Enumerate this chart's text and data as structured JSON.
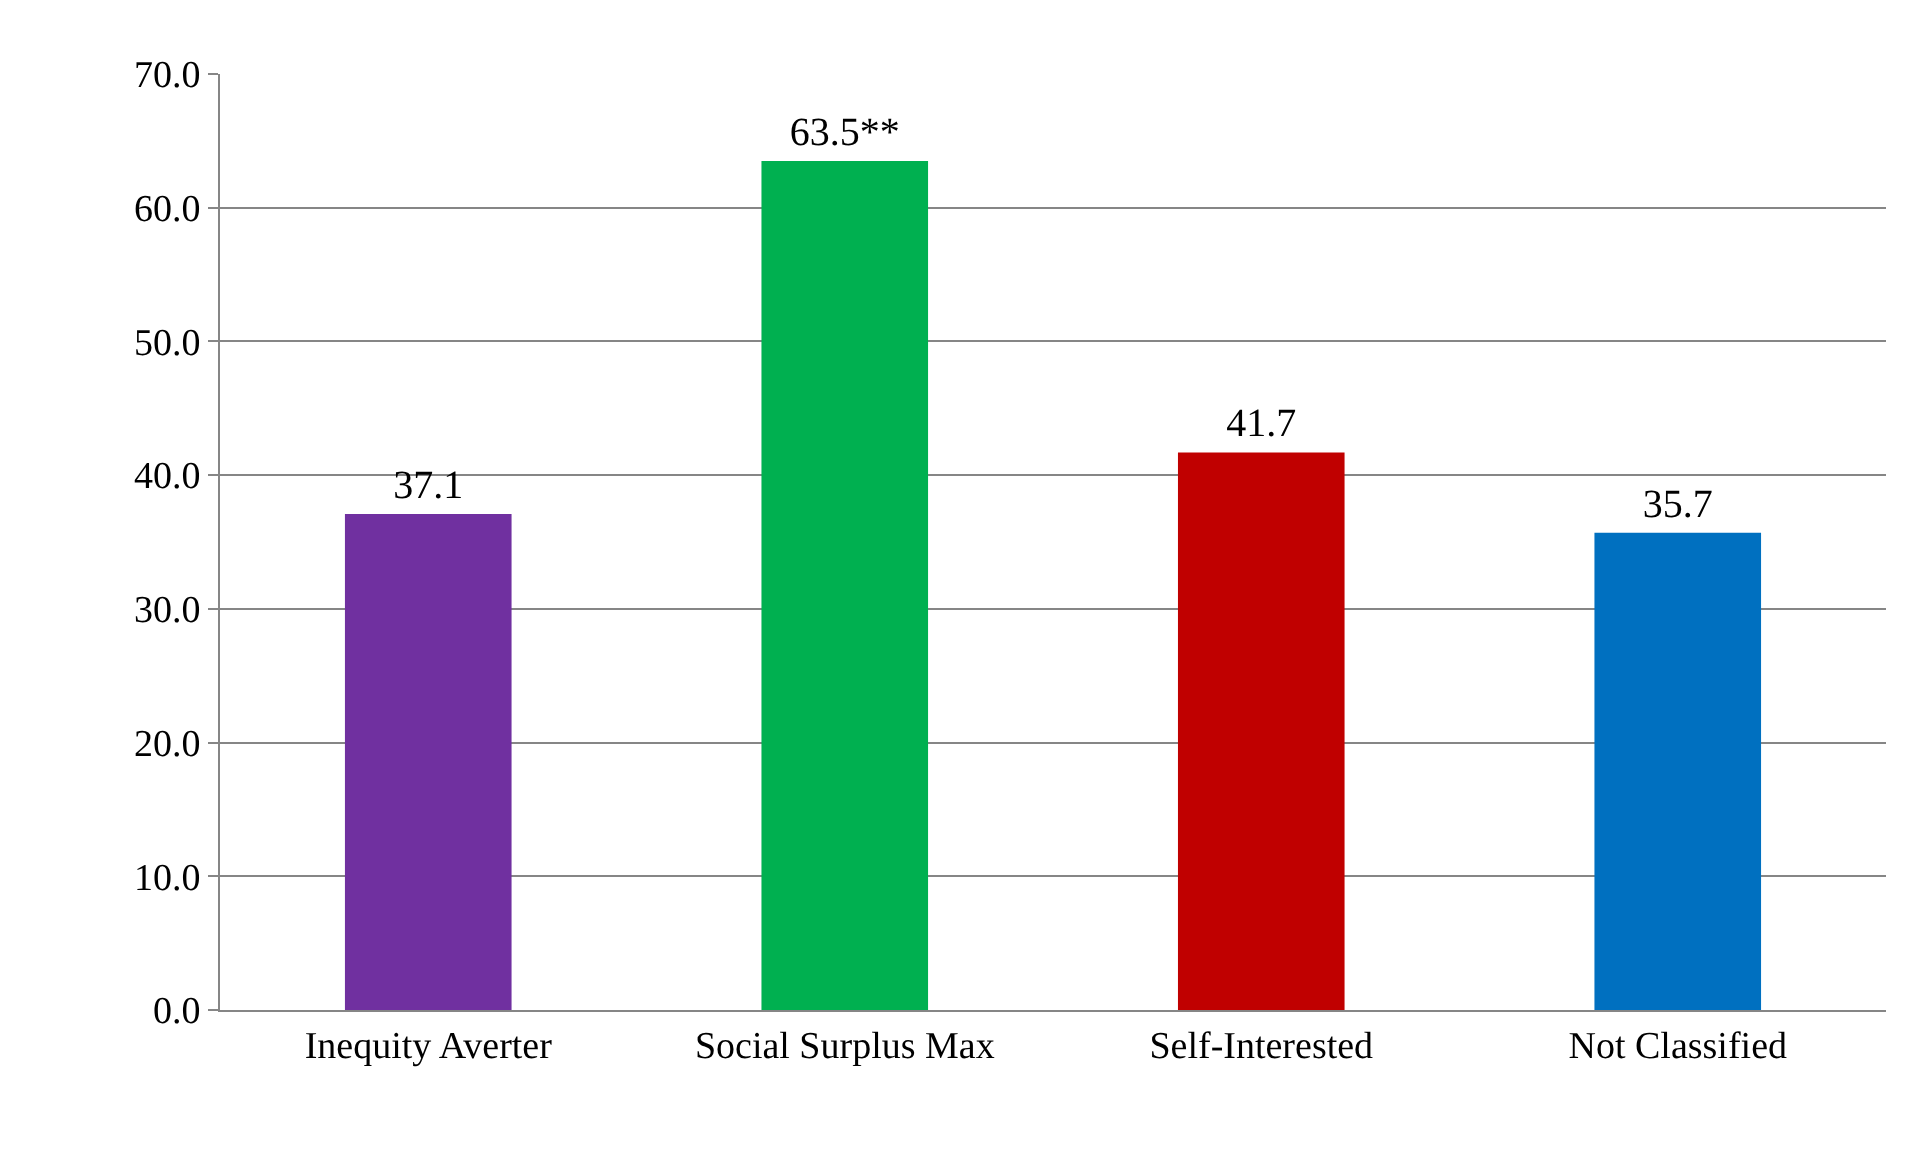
{
  "chart_data": {
    "type": "bar",
    "categories": [
      "Inequity Averter",
      "Social Surplus Max",
      "Self-Interested",
      "Not Classified"
    ],
    "values": [
      37.1,
      63.5,
      41.7,
      35.7
    ],
    "colors": [
      "#7030a0",
      "#00b050",
      "#c00000",
      "#0070c0"
    ],
    "value_labels": [
      "37.1",
      "63.5**",
      "41.7",
      "35.7"
    ],
    "ylim": [
      0,
      70
    ],
    "yticks": [
      {
        "value": 0,
        "label": "0.0"
      },
      {
        "value": 10,
        "label": "10.0"
      },
      {
        "value": 20,
        "label": "20.0"
      },
      {
        "value": 30,
        "label": "30.0"
      },
      {
        "value": 40,
        "label": "40.0"
      },
      {
        "value": 50,
        "label": "50.0"
      },
      {
        "value": 60,
        "label": "60.0"
      },
      {
        "value": 70,
        "label": "70.0"
      }
    ],
    "grid": "y"
  }
}
